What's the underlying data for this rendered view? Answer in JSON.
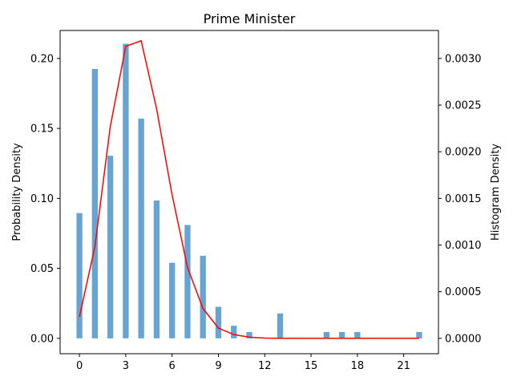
{
  "chart_data": {
    "type": "bar",
    "title": "Prime Minister",
    "ylabel": "Probability Density",
    "ylabel_right": "Histogram Density",
    "xlim": [
      -1.25,
      23.25
    ],
    "ylim": [
      -0.011,
      0.22
    ],
    "ylim_right": [
      -0.000165,
      0.0033
    ],
    "x_ticks": [
      0,
      3,
      6,
      9,
      12,
      15,
      18,
      21
    ],
    "y_ticks": [
      0.0,
      0.05,
      0.1,
      0.15,
      0.2
    ],
    "y_ticks_right": [
      0.0,
      0.0005,
      0.001,
      0.0015,
      0.002,
      0.0025,
      0.003
    ],
    "grid": false,
    "legend": "none",
    "series": [
      {
        "kind": "bar",
        "axis": "left",
        "color": "#5f9fcf",
        "x": [
          0,
          1,
          2,
          3,
          4,
          5,
          6,
          7,
          8,
          9,
          10,
          11,
          13,
          16,
          17,
          18,
          22
        ],
        "values": [
          0.0895,
          0.1925,
          0.1305,
          0.2105,
          0.157,
          0.0985,
          0.054,
          0.081,
          0.059,
          0.0225,
          0.009,
          0.0045,
          0.0178,
          0.0045,
          0.0045,
          0.0045,
          0.0045
        ]
      },
      {
        "kind": "line",
        "axis": "right",
        "color": "#ff0000",
        "x": [
          0,
          1,
          2,
          3,
          4,
          5,
          6,
          7,
          8,
          9,
          10,
          11,
          12,
          13,
          14,
          15,
          16,
          17,
          18,
          19,
          20,
          21,
          22
        ],
        "values": [
          0.00023,
          0.00098,
          0.00227,
          0.00313,
          0.00319,
          0.00246,
          0.00154,
          0.00076,
          0.00032,
          0.00011,
          4e-05,
          1.2e-05,
          3e-06,
          1e-06,
          0,
          0,
          0,
          0,
          0,
          0,
          0,
          0,
          0
        ]
      }
    ]
  }
}
